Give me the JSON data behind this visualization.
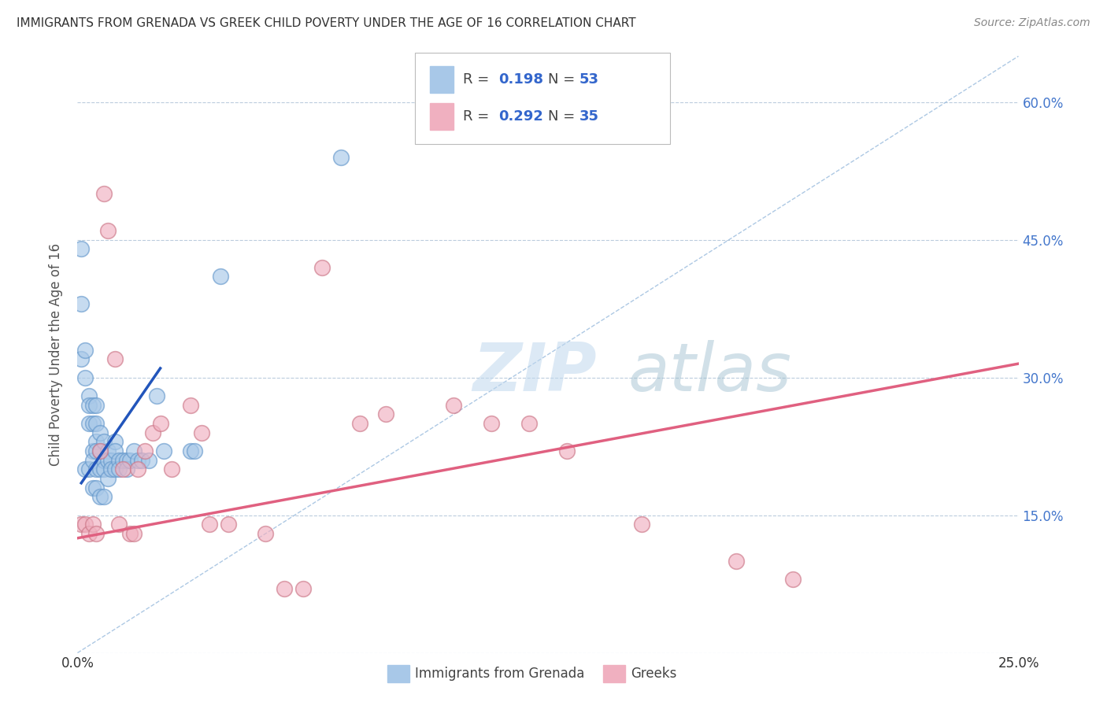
{
  "title": "IMMIGRANTS FROM GRENADA VS GREEK CHILD POVERTY UNDER THE AGE OF 16 CORRELATION CHART",
  "source": "Source: ZipAtlas.com",
  "ylabel": "Child Poverty Under the Age of 16",
  "x_min": 0.0,
  "x_max": 0.25,
  "y_min": 0.0,
  "y_max": 0.65,
  "x_ticks": [
    0.0,
    0.05,
    0.1,
    0.15,
    0.2,
    0.25
  ],
  "x_tick_labels": [
    "0.0%",
    "",
    "",
    "",
    "",
    "25.0%"
  ],
  "y_ticks": [
    0.0,
    0.15,
    0.3,
    0.45,
    0.6
  ],
  "y_tick_labels_right": [
    "",
    "15.0%",
    "30.0%",
    "45.0%",
    "60.0%"
  ],
  "color_blue": "#a8c8e8",
  "color_pink": "#f0b0c0",
  "color_blue_line": "#2255bb",
  "color_pink_line": "#e06080",
  "color_dashed": "#99bbdd",
  "blue_scatter_x": [
    0.001,
    0.001,
    0.001,
    0.002,
    0.002,
    0.002,
    0.003,
    0.003,
    0.003,
    0.003,
    0.004,
    0.004,
    0.004,
    0.004,
    0.004,
    0.005,
    0.005,
    0.005,
    0.005,
    0.005,
    0.005,
    0.006,
    0.006,
    0.006,
    0.006,
    0.007,
    0.007,
    0.007,
    0.007,
    0.008,
    0.008,
    0.008,
    0.009,
    0.009,
    0.01,
    0.01,
    0.01,
    0.011,
    0.011,
    0.012,
    0.013,
    0.013,
    0.014,
    0.015,
    0.016,
    0.017,
    0.019,
    0.021,
    0.023,
    0.03,
    0.031,
    0.038,
    0.07
  ],
  "blue_scatter_y": [
    0.44,
    0.38,
    0.32,
    0.33,
    0.3,
    0.2,
    0.28,
    0.27,
    0.25,
    0.2,
    0.27,
    0.25,
    0.22,
    0.21,
    0.18,
    0.27,
    0.25,
    0.23,
    0.22,
    0.2,
    0.18,
    0.24,
    0.22,
    0.2,
    0.17,
    0.23,
    0.21,
    0.2,
    0.17,
    0.22,
    0.21,
    0.19,
    0.21,
    0.2,
    0.23,
    0.22,
    0.2,
    0.21,
    0.2,
    0.21,
    0.21,
    0.2,
    0.21,
    0.22,
    0.21,
    0.21,
    0.21,
    0.28,
    0.22,
    0.22,
    0.22,
    0.41,
    0.54
  ],
  "pink_scatter_x": [
    0.001,
    0.002,
    0.003,
    0.004,
    0.005,
    0.006,
    0.007,
    0.008,
    0.01,
    0.011,
    0.012,
    0.014,
    0.015,
    0.016,
    0.018,
    0.02,
    0.022,
    0.025,
    0.03,
    0.033,
    0.035,
    0.04,
    0.05,
    0.055,
    0.06,
    0.065,
    0.075,
    0.082,
    0.1,
    0.11,
    0.12,
    0.13,
    0.15,
    0.175,
    0.19
  ],
  "pink_scatter_y": [
    0.14,
    0.14,
    0.13,
    0.14,
    0.13,
    0.22,
    0.5,
    0.46,
    0.32,
    0.14,
    0.2,
    0.13,
    0.13,
    0.2,
    0.22,
    0.24,
    0.25,
    0.2,
    0.27,
    0.24,
    0.14,
    0.14,
    0.13,
    0.07,
    0.07,
    0.42,
    0.25,
    0.26,
    0.27,
    0.25,
    0.25,
    0.22,
    0.14,
    0.1,
    0.08
  ],
  "blue_trend_x": [
    0.001,
    0.022
  ],
  "blue_trend_y": [
    0.185,
    0.31
  ],
  "pink_trend_x": [
    0.0,
    0.25
  ],
  "pink_trend_y": [
    0.125,
    0.315
  ],
  "dashed_trend_x": [
    0.0,
    0.25
  ],
  "dashed_trend_y": [
    0.0,
    0.65
  ],
  "watermark_zip": "ZIP",
  "watermark_atlas": "atlas",
  "bg_color": "#ffffff",
  "grid_color": "#cccccc"
}
